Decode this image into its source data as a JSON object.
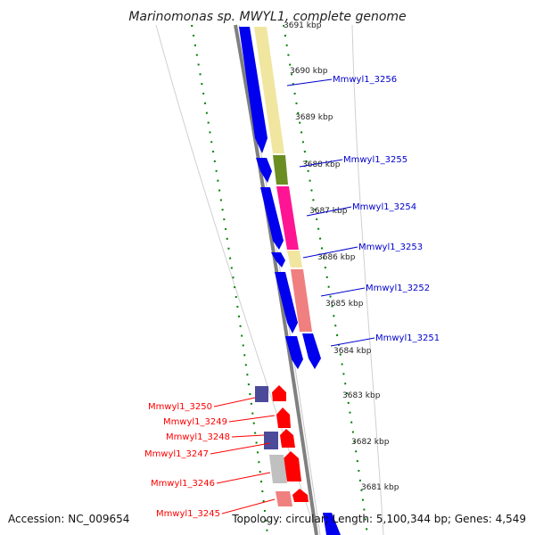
{
  "title": "Marinomonas sp. MWYL1, complete genome",
  "footer": {
    "accession": "Accession: NC_009654",
    "summary": "Topology: circular; Length: 5,100,344 bp; Genes: 4,549"
  },
  "ticks": [
    "3691 kbp",
    "3690 kbp",
    "3689 kbp",
    "3688 kbp",
    "3687 kbp",
    "3686 kbp",
    "3685 kbp",
    "3684 kbp",
    "3683 kbp",
    "3682 kbp",
    "3681 kbp"
  ],
  "genes": [
    {
      "name": "Mmwyl1_3256",
      "strand": "forward",
      "color": "#0000cc",
      "track_color": "#f0e6a0"
    },
    {
      "name": "Mmwyl1_3255",
      "strand": "forward",
      "color": "#0000cc",
      "track_color": "#6b8e23"
    },
    {
      "name": "Mmwyl1_3254",
      "strand": "forward",
      "color": "#0000cc",
      "track_color": "#ff1493"
    },
    {
      "name": "Mmwyl1_3253",
      "strand": "forward",
      "color": "#0000cc",
      "track_color": "#f0e6a0"
    },
    {
      "name": "Mmwyl1_3252",
      "strand": "forward",
      "color": "#0000cc",
      "track_color": "#f08080"
    },
    {
      "name": "Mmwyl1_3251",
      "strand": "forward",
      "color": "#0000cc",
      "track_color": "#0000ff"
    },
    {
      "name": "Mmwyl1_3250",
      "strand": "reverse",
      "color": "#ff0000",
      "track_color": "#4b4b9a"
    },
    {
      "name": "Mmwyl1_3249",
      "strand": "reverse",
      "color": "#ff0000",
      "track_color": ""
    },
    {
      "name": "Mmwyl1_3248",
      "strand": "reverse",
      "color": "#ff0000",
      "track_color": "#4b4b9a"
    },
    {
      "name": "Mmwyl1_3247",
      "strand": "reverse",
      "color": "#ff0000",
      "track_color": "#c0c0c0"
    },
    {
      "name": "Mmwyl1_3246",
      "strand": "reverse",
      "color": "#ff0000",
      "track_color": "#f08080"
    },
    {
      "name": "Mmwyl1_3245",
      "strand": "reverse",
      "color": "#ff0000",
      "track_color": ""
    }
  ],
  "colors": {
    "forward_label": "#0000cc",
    "reverse_label": "#ff0000",
    "gc_skew_dots": "#008000",
    "backbone": "#808080",
    "ring_outline": "#cccccc"
  }
}
